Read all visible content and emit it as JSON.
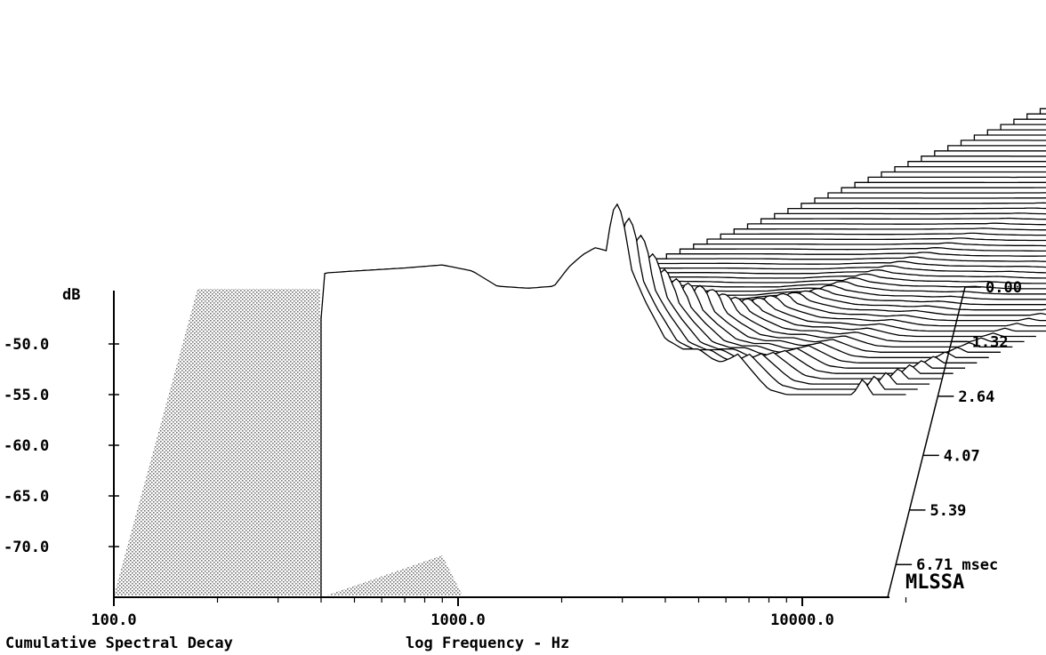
{
  "chart_data": {
    "type": "waterfall",
    "title": "Cumulative Spectral Decay",
    "xlabel": "log Frequency - Hz",
    "ylabel": "dB",
    "zlabel": "msec",
    "brand": "MLSSA",
    "x_scale": "log",
    "xlim": [
      100,
      20000
    ],
    "ylim": [
      -75,
      -45
    ],
    "zlim": [
      0,
      7.5
    ],
    "x_tick_labels": [
      "100.0",
      "1000.0",
      "10000.0"
    ],
    "x_tick_values": [
      100,
      1000,
      10000
    ],
    "y_tick_labels": [
      "-50.0",
      "-55.0",
      "-60.0",
      "-65.0",
      "-70.0"
    ],
    "y_tick_values": [
      -50,
      -55,
      -60,
      -65,
      -70
    ],
    "z_tick_labels": [
      "0.00",
      "1.32",
      "2.64",
      "4.07",
      "5.39",
      "6.71 msec"
    ],
    "z_tick_values": [
      0,
      1.32,
      2.64,
      4.07,
      5.39,
      6.71
    ],
    "slice_count": 58,
    "slice_interval_msec": 0.128,
    "first_slice_profile": {
      "freq_hz": [
        400,
        410,
        500,
        700,
        900,
        1100,
        1300,
        1600,
        1900,
        2100,
        2300,
        2500,
        2700,
        2800,
        2900,
        3000,
        3200,
        3500,
        4000,
        4500,
        5000,
        5500,
        5800,
        6200,
        6500,
        7000,
        7500,
        8000,
        9000,
        12000,
        14000,
        14500,
        15000,
        15500,
        16000,
        17000,
        20000
      ],
      "level_db": [
        -47.5,
        -43,
        -42.8,
        -42.5,
        -42.2,
        -42.8,
        -44.3,
        -44.5,
        -44.3,
        -42.4,
        -41.2,
        -40.5,
        -40.8,
        -37.0,
        -36.2,
        -37.3,
        -42.8,
        -45.8,
        -49.5,
        -50.5,
        -50.5,
        -51.5,
        -51.8,
        -51.4,
        -51.0,
        -52.3,
        -53.5,
        -54.5,
        -55.0,
        -55.0,
        -55.0,
        -54.2,
        -53.4,
        -54.2,
        -55.0,
        -55.0,
        -55.0
      ]
    }
  }
}
